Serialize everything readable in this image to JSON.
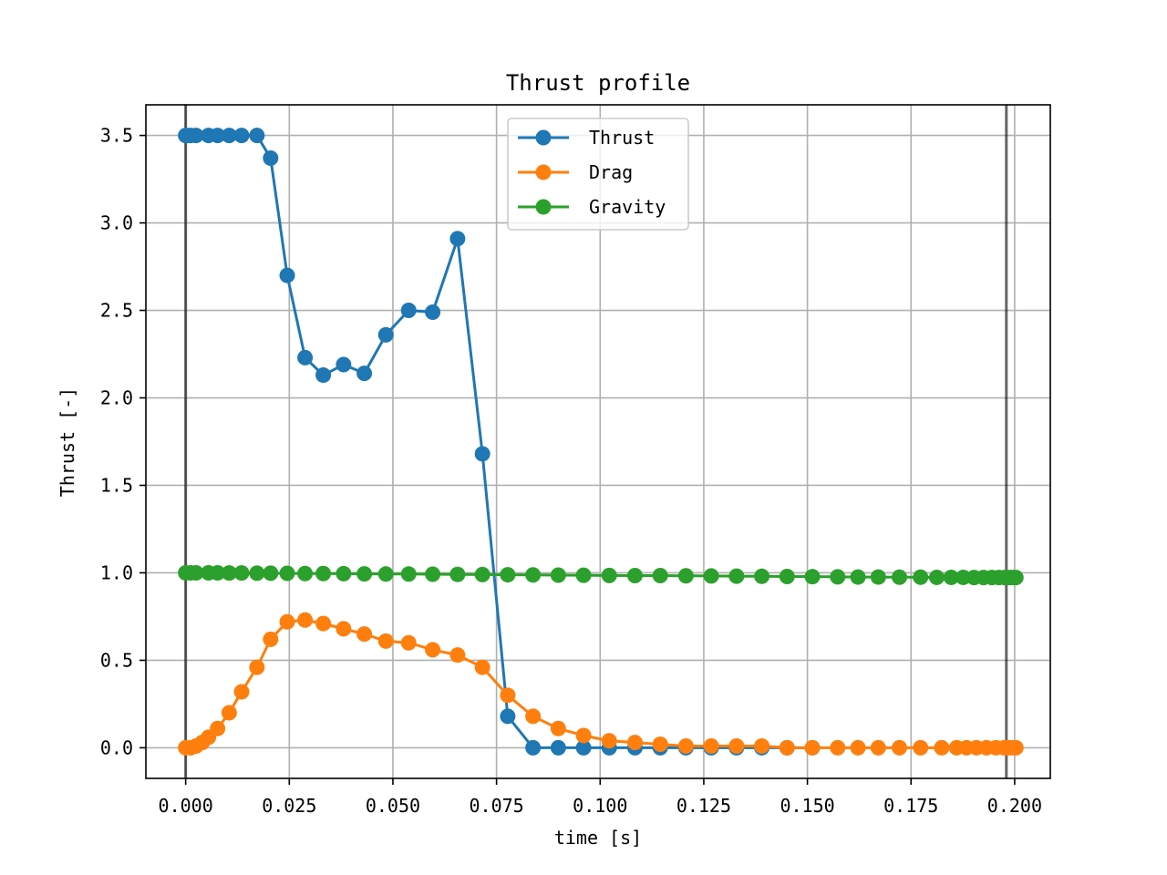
{
  "chart_data": {
    "type": "line",
    "title": "Thrust profile",
    "xlabel": "time [s]",
    "ylabel": "Thrust [-]",
    "xlim": [
      -0.0096,
      0.2086
    ],
    "ylim": [
      -0.175,
      3.675
    ],
    "xticks": [
      0.0,
      0.025,
      0.05,
      0.075,
      0.1,
      0.125,
      0.15,
      0.175,
      0.2
    ],
    "xtick_labels": [
      "0.000",
      "0.025",
      "0.050",
      "0.075",
      "0.100",
      "0.125",
      "0.150",
      "0.175",
      "0.200"
    ],
    "yticks": [
      0.0,
      0.5,
      1.0,
      1.5,
      2.0,
      2.5,
      3.0,
      3.5
    ],
    "ytick_labels": [
      "0.0",
      "0.5",
      "1.0",
      "1.5",
      "2.0",
      "2.5",
      "3.0",
      "3.5"
    ],
    "grid": true,
    "legend_position": "top-center",
    "vertical_lines": [
      0.0,
      0.198
    ],
    "series": [
      {
        "name": "Thrust",
        "color": "#1f77b4",
        "x": [
          0.0,
          0.0003,
          0.0012,
          0.0025,
          0.0055,
          0.0077,
          0.0105,
          0.0135,
          0.0172,
          0.0205,
          0.0245,
          0.0288,
          0.0332,
          0.0381,
          0.0431,
          0.0483,
          0.0538,
          0.0596,
          0.0656,
          0.0716,
          0.0777,
          0.0838,
          0.0899,
          0.096,
          0.1022,
          0.1084,
          0.1145,
          0.1207,
          0.1268,
          0.1329,
          0.139,
          0.1451,
          0.1512
        ],
        "values": [
          3.5,
          3.5,
          3.5,
          3.5,
          3.5,
          3.5,
          3.5,
          3.5,
          3.5,
          3.37,
          2.7,
          2.23,
          2.13,
          2.19,
          2.14,
          2.36,
          2.5,
          2.49,
          2.91,
          1.68,
          0.18,
          0.0,
          0.0,
          0.0,
          0.0,
          0.0,
          0.0,
          0.0,
          0.0,
          0.0,
          0.0,
          0.0,
          0.0
        ]
      },
      {
        "name": "Drag",
        "color": "#ff7f0e",
        "x": [
          0.0,
          0.0012,
          0.0025,
          0.004,
          0.0055,
          0.0077,
          0.0105,
          0.0135,
          0.0172,
          0.0205,
          0.0245,
          0.0288,
          0.0332,
          0.0381,
          0.0431,
          0.0483,
          0.0538,
          0.0596,
          0.0656,
          0.0716,
          0.0777,
          0.0838,
          0.0899,
          0.096,
          0.1022,
          0.1084,
          0.1145,
          0.1207,
          0.1268,
          0.1329,
          0.139,
          0.1451,
          0.1512,
          0.1573,
          0.1622,
          0.1671,
          0.1722,
          0.1773,
          0.1824,
          0.186,
          0.1884,
          0.1908,
          0.1932,
          0.1955,
          0.1975,
          0.1985,
          0.1995,
          0.2003
        ],
        "values": [
          0.0,
          0.0,
          0.01,
          0.03,
          0.06,
          0.11,
          0.2,
          0.32,
          0.46,
          0.62,
          0.72,
          0.73,
          0.71,
          0.68,
          0.65,
          0.61,
          0.6,
          0.56,
          0.53,
          0.46,
          0.3,
          0.18,
          0.11,
          0.07,
          0.04,
          0.03,
          0.02,
          0.01,
          0.01,
          0.01,
          0.01,
          0.0,
          0.0,
          0.0,
          0.0,
          0.0,
          0.0,
          0.0,
          0.0,
          0.0,
          0.0,
          0.0,
          0.0,
          0.0,
          0.0,
          0.0,
          0.0,
          0.0
        ]
      },
      {
        "name": "Gravity",
        "color": "#2ca02c",
        "x": [
          0.0,
          0.0012,
          0.0025,
          0.0055,
          0.0077,
          0.0105,
          0.0135,
          0.0172,
          0.0205,
          0.0245,
          0.0288,
          0.0332,
          0.0381,
          0.0431,
          0.0483,
          0.0538,
          0.0596,
          0.0656,
          0.0716,
          0.0777,
          0.0838,
          0.0899,
          0.096,
          0.1022,
          0.1084,
          0.1145,
          0.1207,
          0.1268,
          0.1329,
          0.139,
          0.1451,
          0.1512,
          0.1573,
          0.1622,
          0.1671,
          0.1722,
          0.1773,
          0.1812,
          0.1847,
          0.1876,
          0.1902,
          0.1925,
          0.1945,
          0.1962,
          0.1976,
          0.1987,
          0.1996,
          0.2003
        ],
        "values": [
          1.0,
          1.0,
          1.0,
          1.0,
          1.0,
          0.999,
          0.999,
          0.998,
          0.998,
          0.997,
          0.996,
          0.996,
          0.995,
          0.994,
          0.993,
          0.993,
          0.992,
          0.991,
          0.99,
          0.989,
          0.988,
          0.987,
          0.986,
          0.985,
          0.984,
          0.984,
          0.983,
          0.982,
          0.981,
          0.98,
          0.979,
          0.978,
          0.977,
          0.976,
          0.976,
          0.975,
          0.975,
          0.974,
          0.974,
          0.974,
          0.973,
          0.973,
          0.973,
          0.973,
          0.973,
          0.973,
          0.973,
          0.973
        ]
      }
    ]
  }
}
